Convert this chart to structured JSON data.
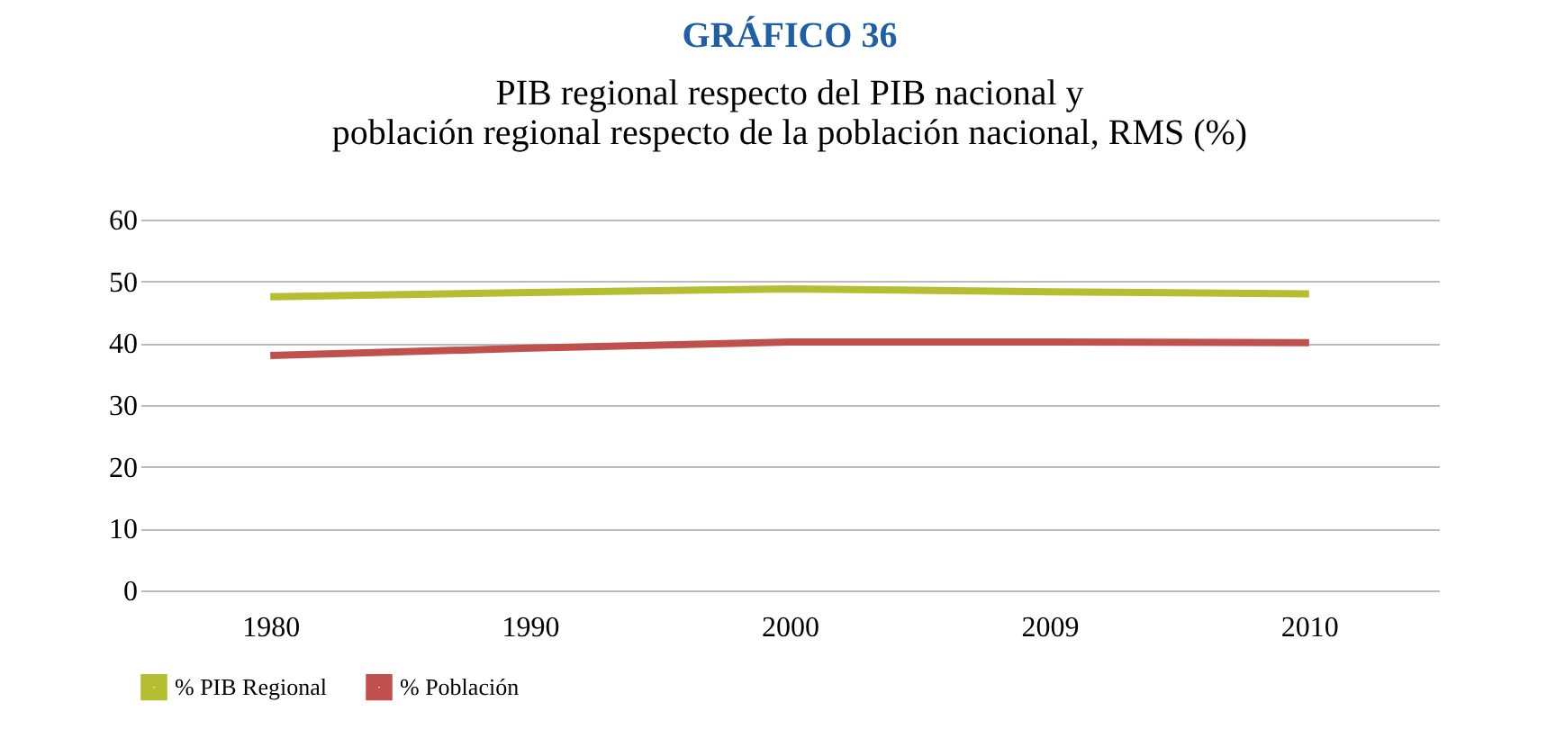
{
  "chart_data": {
    "type": "line",
    "title": "GRÁFICO 36",
    "subtitle": [
      "PIB regional respecto del PIB nacional y",
      "población regional respecto de la población nacional, RMS (%)"
    ],
    "categories": [
      "1980",
      "1990",
      "2000",
      "2009",
      "2010"
    ],
    "series": [
      {
        "name": "% PIB Regional",
        "color": "#b5bd30",
        "values": [
          47.5,
          48.2,
          48.8,
          48.3,
          48.0
        ]
      },
      {
        "name": "% Población",
        "color": "#c0504d",
        "values": [
          38.0,
          39.2,
          40.2,
          40.2,
          40.1
        ]
      }
    ],
    "ylim": [
      0,
      60
    ],
    "yticks": [
      0,
      10,
      20,
      30,
      40,
      50,
      60
    ],
    "grid": "y",
    "legend": "bottom",
    "marker": "none",
    "line_style": "solid"
  }
}
